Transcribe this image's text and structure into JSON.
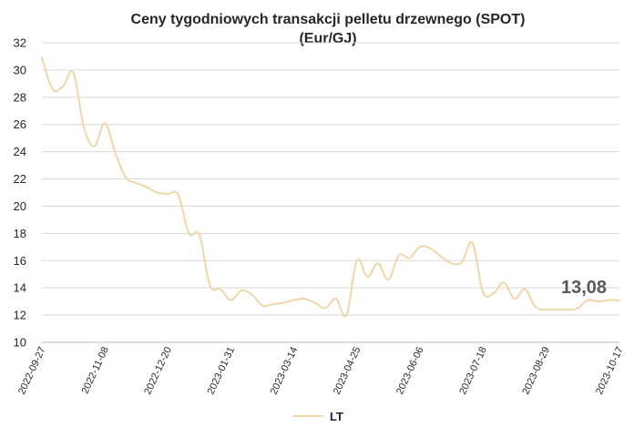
{
  "chart_data": {
    "type": "line",
    "title_line1": "Ceny tygodniowych transakcji pelletu drzewnego (SPOT)",
    "title_line2": "(Eur/GJ)",
    "xlabel": "",
    "ylabel": "",
    "ylim": [
      10,
      32
    ],
    "yticks": [
      10,
      12,
      14,
      16,
      18,
      20,
      22,
      24,
      26,
      28,
      30,
      32
    ],
    "xticks": [
      "2022-09-27",
      "2022-11-08",
      "2022-12-20",
      "2023-01-31",
      "2023-03-14",
      "2023-04-25",
      "2023-06-06",
      "2023-07-18",
      "2023-08-29",
      "2023-10-17"
    ],
    "grid": true,
    "legend_position": "bottom",
    "line_color": "#F2D6A9",
    "series": [
      {
        "name": "LT",
        "x": [
          "2022-09-27",
          "2022-10-04",
          "2022-10-11",
          "2022-10-18",
          "2022-10-25",
          "2022-11-01",
          "2022-11-08",
          "2022-11-15",
          "2022-11-22",
          "2022-11-29",
          "2022-12-06",
          "2022-12-13",
          "2022-12-20",
          "2022-12-27",
          "2023-01-03",
          "2023-01-10",
          "2023-01-17",
          "2023-01-24",
          "2023-01-31",
          "2023-02-07",
          "2023-02-14",
          "2023-02-21",
          "2023-02-28",
          "2023-03-07",
          "2023-03-14",
          "2023-03-21",
          "2023-03-28",
          "2023-04-04",
          "2023-04-11",
          "2023-04-18",
          "2023-04-25",
          "2023-05-02",
          "2023-05-09",
          "2023-05-16",
          "2023-05-23",
          "2023-05-30",
          "2023-06-06",
          "2023-06-13",
          "2023-06-20",
          "2023-06-27",
          "2023-07-04",
          "2023-07-11",
          "2023-07-18",
          "2023-07-25",
          "2023-08-01",
          "2023-08-08",
          "2023-08-15",
          "2023-08-22",
          "2023-08-29",
          "2023-09-05",
          "2023-09-12",
          "2023-09-19",
          "2023-09-26",
          "2023-10-03",
          "2023-10-10",
          "2023-10-17"
        ],
        "values": [
          30.9,
          28.6,
          28.8,
          29.8,
          25.8,
          24.4,
          26.1,
          23.9,
          22.1,
          21.7,
          21.4,
          21.0,
          20.9,
          20.8,
          18.0,
          17.9,
          14.2,
          13.9,
          13.1,
          13.8,
          13.5,
          12.7,
          12.8,
          12.9,
          13.1,
          13.2,
          12.9,
          12.5,
          13.2,
          12.0,
          16.0,
          14.8,
          15.8,
          14.6,
          16.4,
          16.2,
          17.0,
          16.9,
          16.3,
          15.8,
          15.9,
          17.3,
          13.7,
          13.6,
          14.4,
          13.2,
          13.9,
          12.6,
          12.4,
          12.4,
          12.4,
          12.5,
          13.1,
          13.0,
          13.1,
          13.08
        ]
      }
    ],
    "annotation": "13,08"
  }
}
